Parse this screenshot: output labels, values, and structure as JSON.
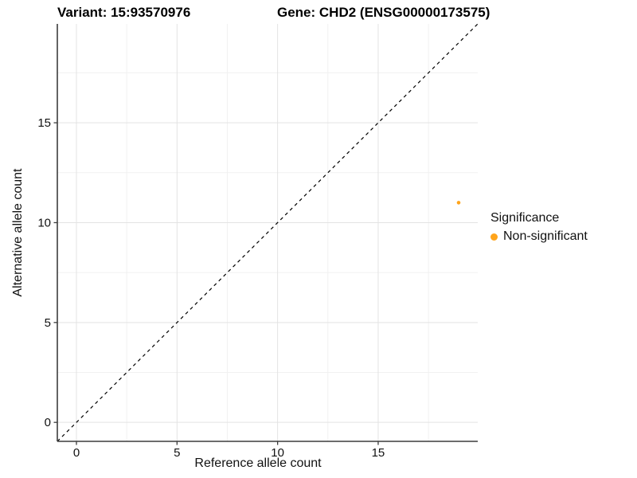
{
  "chart_data": {
    "type": "scatter",
    "title_left": "Variant: 15:93570976",
    "title_right": "Gene: CHD2 (ENSG00000173575)",
    "xlabel": "Reference allele count",
    "ylabel": "Alternative allele count",
    "xlim": [
      -0.95,
      19.95
    ],
    "ylim": [
      -0.95,
      19.95
    ],
    "x_ticks": [
      0,
      5,
      10,
      15
    ],
    "y_ticks": [
      0,
      5,
      10,
      15
    ],
    "x_minor_ticks": [
      2.5,
      7.5,
      12.5,
      17.5
    ],
    "y_minor_ticks": [
      2.5,
      7.5,
      12.5,
      17.5
    ],
    "grid": true,
    "identity_line": {
      "style": "dashed",
      "color": "#000000",
      "from": [
        -0.95,
        -0.95
      ],
      "to": [
        19.95,
        19.95
      ]
    },
    "series": [
      {
        "name": "Non-significant",
        "color": "#FFA41B",
        "points": [
          {
            "x": 19,
            "y": 11
          }
        ]
      }
    ],
    "legend": {
      "title": "Significance",
      "position": "right",
      "items": [
        {
          "label": "Non-significant",
          "color": "#FFA41B"
        }
      ]
    },
    "colors": {
      "point": "#FFA41B",
      "axis_line": "#3c3c3c",
      "major_grid": "#e3e3e3",
      "minor_grid": "#f1f1f1",
      "text": "#111111"
    }
  }
}
